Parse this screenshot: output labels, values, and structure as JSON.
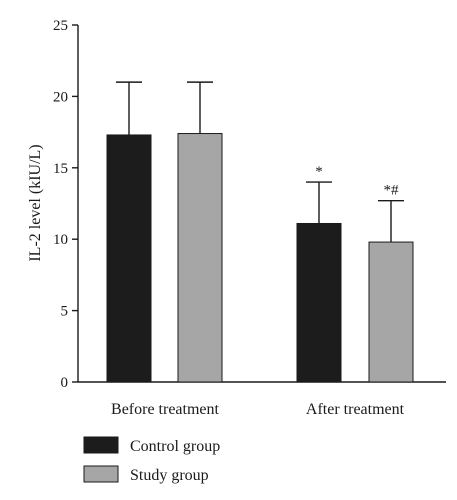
{
  "chart_data": {
    "type": "bar",
    "categories": [
      "Before treatment",
      "After treatment"
    ],
    "series": [
      {
        "name": "Control group",
        "values": [
          17.3,
          11.1
        ],
        "errors": [
          3.7,
          2.9
        ],
        "color": "#1c1c1c"
      },
      {
        "name": "Study group",
        "values": [
          17.4,
          9.8
        ],
        "errors": [
          3.6,
          2.9
        ],
        "color": "#a6a6a6"
      }
    ],
    "annotations": [
      [
        "",
        ""
      ],
      [
        "*",
        "*#"
      ]
    ],
    "xlabel": "",
    "ylabel": "IL-2 level (kIU/L)",
    "ylim": [
      0,
      25
    ],
    "yticks": [
      0,
      5,
      10,
      15,
      20,
      25
    ],
    "ytick_labels": [
      "0",
      "5",
      "10",
      "15",
      "20",
      "25"
    ],
    "grid": false,
    "legend": "bottom-left"
  }
}
